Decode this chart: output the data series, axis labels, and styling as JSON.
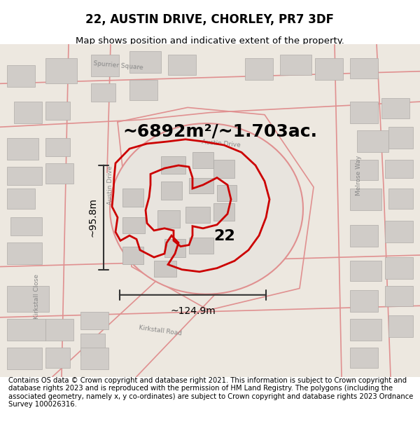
{
  "title": "22, AUSTIN DRIVE, CHORLEY, PR7 3DF",
  "subtitle": "Map shows position and indicative extent of the property.",
  "area_text": "~6892m²/~1.703ac.",
  "width_text": "~124.9m",
  "height_text": "~95.8m",
  "label_22": "22",
  "footer": "Contains OS data © Crown copyright and database right 2021. This information is subject to Crown copyright and database rights 2023 and is reproduced with the permission of HM Land Registry. The polygons (including the associated geometry, namely x, y co-ordinates) are subject to Crown copyright and database rights 2023 Ordnance Survey 100026316.",
  "bg_color": "#ffffff",
  "map_bg": "#ede8e0",
  "road_color": "#e09090",
  "bld_color": "#d0ccc8",
  "bld_ec": "#b0aca8",
  "inner_bld_color": "#ccc8c4",
  "inner_bld_ec": "#aaa8a4",
  "plot_outline_color": "#cc0000",
  "dimension_color": "#333333",
  "title_fontsize": 12,
  "subtitle_fontsize": 9.5,
  "area_fontsize": 18,
  "label_fontsize": 16,
  "dim_fontsize": 10,
  "footer_fontsize": 7.2
}
